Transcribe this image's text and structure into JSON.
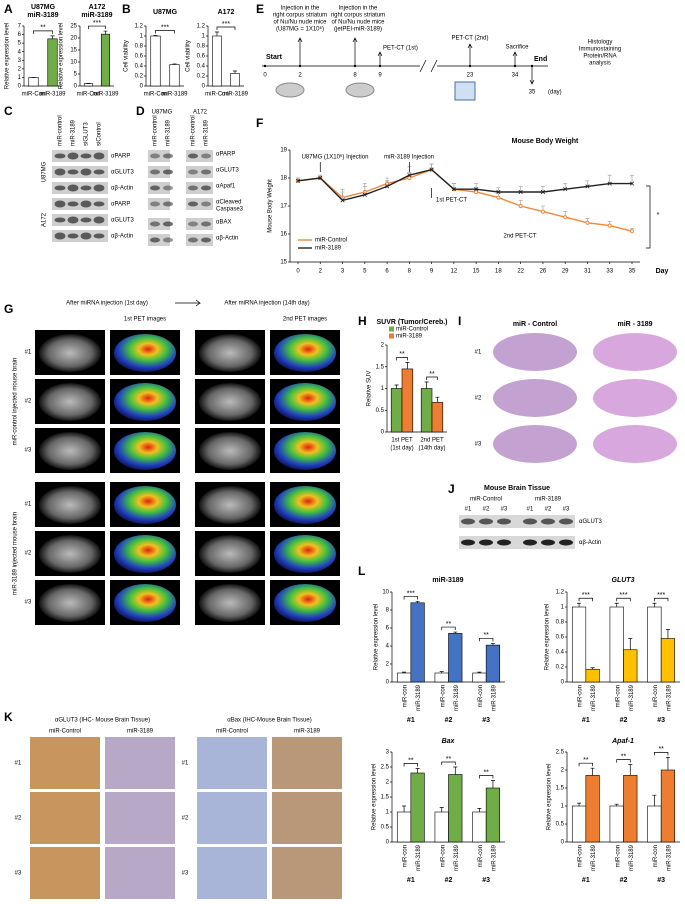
{
  "chart_data": [
    {
      "type": "bar",
      "title": [
        "U87MG",
        "miR-3189"
      ],
      "ylabel": "Relative expression level",
      "categories": [
        "miR-Con",
        "miR-3189"
      ],
      "values": [
        1,
        5.5
      ],
      "errors": [
        0,
        0.35
      ],
      "colors": [
        "#ffffff",
        "#70ad47"
      ],
      "ylim": [
        0,
        7
      ],
      "yticks": [
        0,
        1,
        2,
        3,
        4,
        5,
        6,
        7
      ],
      "annotations": [
        "**"
      ]
    },
    {
      "type": "bar",
      "title": [
        "A172",
        "miR-3189"
      ],
      "ylabel": "Relative expression level",
      "categories": [
        "miR-Con",
        "miR-3189"
      ],
      "values": [
        1,
        21.6
      ],
      "errors": [
        0.1,
        1.3
      ],
      "colors": [
        "#ffffff",
        "#70ad47"
      ],
      "ylim": [
        0,
        25
      ],
      "yticks": [
        0,
        5,
        10,
        15,
        20,
        25
      ],
      "annotations": [
        "***"
      ]
    },
    {
      "type": "bar",
      "title": [
        "U87MG"
      ],
      "ylabel": "Cell viability",
      "categories": [
        "miR-Con",
        "miR-3189"
      ],
      "values": [
        1,
        0.43
      ],
      "errors": [
        0.01,
        0.01
      ],
      "colors": [
        "#ffffff",
        "#ffffff"
      ],
      "ylim": [
        0,
        1.2
      ],
      "yticks": [
        0,
        0.2,
        0.4,
        0.6,
        0.8,
        1,
        1.2
      ],
      "annotations": [
        "***"
      ]
    },
    {
      "type": "bar",
      "title": [
        "A172"
      ],
      "ylabel": "Cell viability",
      "categories": [
        "miR-Con",
        "miR-3189"
      ],
      "values": [
        1,
        0.25
      ],
      "errors": [
        0.08,
        0.05
      ],
      "colors": [
        "#ffffff",
        "#ffffff"
      ],
      "ylim": [
        0,
        1.2
      ],
      "yticks": [
        0,
        0.2,
        0.4,
        0.6,
        0.8,
        1,
        1.2
      ],
      "annotations": [
        "***"
      ]
    },
    {
      "type": "line",
      "title": "Mouse Body Weight",
      "ylabel": "Mouse Body Weight",
      "xlabel": "Day",
      "categories": [
        "0",
        "2",
        "3",
        "5",
        "6",
        "8",
        "9",
        "12",
        "15",
        "18",
        "22",
        "26",
        "29",
        "31",
        "33",
        "35"
      ],
      "series": [
        {
          "name": "miR-Control",
          "color": "#f0883c",
          "values": [
            17.9,
            18.0,
            17.3,
            17.5,
            17.8,
            18.0,
            18.3,
            17.6,
            17.5,
            17.3,
            17.0,
            16.8,
            16.6,
            16.4,
            16.3,
            16.1
          ],
          "errors": [
            0.1,
            0.1,
            0.3,
            0.3,
            0.2,
            0.2,
            0.2,
            0.2,
            0.15,
            0.2,
            0.2,
            0.2,
            0.2,
            0.15,
            0.15,
            0.1
          ]
        },
        {
          "name": "miR-3189",
          "color": "#222222",
          "values": [
            17.9,
            18.0,
            17.2,
            17.4,
            17.7,
            18.1,
            18.3,
            17.6,
            17.6,
            17.5,
            17.5,
            17.5,
            17.6,
            17.7,
            17.8,
            17.8
          ],
          "errors": [
            0.1,
            0.1,
            0.3,
            0.3,
            0.2,
            0.3,
            0.2,
            0.2,
            0.2,
            0.15,
            0.2,
            0.2,
            0.2,
            0.2,
            0.3,
            0.3
          ]
        }
      ],
      "ylim": [
        15,
        19
      ],
      "yticks": [
        15,
        16,
        17,
        18,
        19
      ],
      "legend": "lower left",
      "annotations": [
        "U87MG (1X10⁶) Injection",
        "miR-3189 Injection",
        "1st PET-CT",
        "2nd PET-CT",
        "*"
      ]
    },
    {
      "type": "bar",
      "title": "SUVR (Tumor/Cereb.)",
      "ylabel": "Relative SUV",
      "categories": [
        "1st PET",
        "2nd PET"
      ],
      "category_notes": [
        "(1st day)",
        "(14th day)"
      ],
      "series": [
        {
          "name": "miR-Control",
          "color": "#70ad47",
          "values": [
            1.0,
            1.0
          ],
          "errors": [
            0.08,
            0.15
          ]
        },
        {
          "name": "miR-3189",
          "color": "#ed7d31",
          "values": [
            1.45,
            0.68
          ],
          "errors": [
            0.15,
            0.12
          ]
        }
      ],
      "ylim": [
        0,
        2
      ],
      "yticks": [
        0,
        0.5,
        1,
        1.5,
        2
      ],
      "legend": "upper left",
      "annotations": [
        "**",
        "**"
      ]
    },
    {
      "type": "bar",
      "title": "miR-3189",
      "ylabel": "Relative expression level",
      "categories": [
        "#1",
        "#2",
        "#3"
      ],
      "series": [
        {
          "name": "miR-con",
          "color": "#ffffff",
          "values": [
            1,
            1,
            1
          ],
          "errors": [
            0.1,
            0.15,
            0.1
          ]
        },
        {
          "name": "miR-3189",
          "color": "#4472c4",
          "values": [
            8.8,
            5.4,
            4.1
          ],
          "errors": [
            0.15,
            0.15,
            0.2
          ]
        }
      ],
      "ylim": [
        0,
        10
      ],
      "yticks": [
        0,
        2,
        4,
        6,
        8,
        10
      ],
      "annotations": [
        "***",
        "**",
        "**"
      ]
    },
    {
      "type": "bar",
      "title": "GLUT3",
      "ylabel": "Relative expression level",
      "categories": [
        "#1",
        "#2",
        "#3"
      ],
      "series": [
        {
          "name": "miR-con",
          "color": "#ffffff",
          "values": [
            1,
            1,
            1
          ],
          "errors": [
            0.05,
            0.05,
            0.05
          ]
        },
        {
          "name": "miR-3189",
          "color": "#ffc000",
          "values": [
            0.17,
            0.43,
            0.58
          ],
          "errors": [
            0.02,
            0.15,
            0.12
          ]
        }
      ],
      "ylim": [
        0,
        1.2
      ],
      "yticks": [
        0,
        0.2,
        0.4,
        0.6,
        0.8,
        1,
        1.2
      ],
      "annotations": [
        "***",
        "***",
        "***"
      ]
    },
    {
      "type": "bar",
      "title": "Bax",
      "ylabel": "Relative expression level",
      "categories": [
        "#1",
        "#2",
        "#3"
      ],
      "series": [
        {
          "name": "miR-con",
          "color": "#ffffff",
          "values": [
            1,
            1,
            1
          ],
          "errors": [
            0.2,
            0.15,
            0.12
          ]
        },
        {
          "name": "miR-3189",
          "color": "#70ad47",
          "values": [
            2.3,
            2.25,
            1.8
          ],
          "errors": [
            0.15,
            0.25,
            0.25
          ]
        }
      ],
      "ylim": [
        0,
        3
      ],
      "yticks": [
        0,
        0.5,
        1,
        1.5,
        2,
        2.5,
        3
      ],
      "annotations": [
        "**",
        "**",
        "**"
      ]
    },
    {
      "type": "bar",
      "title": "Apaf-1",
      "ylabel": "Relative expression level",
      "categories": [
        "#1",
        "#2",
        "#3"
      ],
      "series": [
        {
          "name": "miR-con",
          "color": "#ffffff",
          "values": [
            1,
            1,
            1
          ],
          "errors": [
            0.08,
            0.05,
            0.3
          ]
        },
        {
          "name": "miR-3189",
          "color": "#ed7d31",
          "values": [
            1.85,
            1.85,
            2.0
          ],
          "errors": [
            0.2,
            0.3,
            0.35
          ]
        }
      ],
      "ylim": [
        0,
        2.5
      ],
      "yticks": [
        0,
        0.5,
        1,
        1.5,
        2,
        2.5
      ],
      "annotations": [
        "**",
        "**",
        "**"
      ]
    }
  ],
  "figure": {
    "panel_letters": [
      "A",
      "B",
      "C",
      "D",
      "E",
      "F",
      "G",
      "H",
      "I",
      "J",
      "K",
      "L"
    ],
    "C": {
      "columns": [
        "miR-control",
        "miR-3189",
        "siGLUT3",
        "siControl"
      ],
      "cell_lines": [
        "U87MG",
        "A172"
      ],
      "rows": [
        "αPARP",
        "αGLUT3",
        "αβ-Actin",
        "αPARP",
        "αGLUT3",
        "αβ-Actin"
      ]
    },
    "D": {
      "cell_lines": [
        "U87MG",
        "A172"
      ],
      "columns": [
        "miR-control",
        "miR-3189",
        "miR-control",
        "miR-3189"
      ],
      "rows": [
        [
          "αPARP"
        ],
        [
          "αGLUT3"
        ],
        [
          "αApaf1"
        ],
        [
          "αCleaved",
          "Caspase3"
        ],
        [
          "αBAX"
        ],
        [
          "αβ-Actin"
        ]
      ]
    },
    "E": {
      "start": "Start",
      "end": "End",
      "injection_1": [
        "Injection in the",
        "right corpus striatum",
        "of Nu/Nu nude mice",
        "(U87MG = 1X10⁶)"
      ],
      "injection_2": [
        "Injection in the",
        "right corpus striatum",
        "of Nu/Nu nude mice",
        "(jetPEI-miR-3189)"
      ],
      "pet_1": "PET-CT (1st)",
      "pet_2": "PET-CT (2nd)",
      "sacrifice": "Sacrifice",
      "analysis": [
        "Histology",
        "Immunostaining",
        "Protein/RNA",
        "analysis"
      ],
      "days": [
        "0",
        "2",
        "8",
        "9",
        "23",
        "34",
        "35"
      ],
      "day_unit": "(day)"
    },
    "G": {
      "headers": [
        "After miRNA injection (1st day)",
        "After miRNA injection (14th day)"
      ],
      "subheaders": [
        "1st PET images",
        "2nd PET images"
      ],
      "groups": [
        "miR-control injected mouse brain",
        "miR-3189 injected mouse brain"
      ],
      "rows": [
        "#1",
        "#2",
        "#3"
      ]
    },
    "I": {
      "columns": [
        "miR - Control",
        "miR - 3189"
      ],
      "rows": [
        "#1",
        "#2",
        "#3"
      ]
    },
    "J": {
      "title": "Mouse Brain Tissue",
      "groups": [
        "miR-Control",
        "miR-3189"
      ],
      "lanes": [
        "#1",
        "#2",
        "#3",
        "#1",
        "#2",
        "#3"
      ],
      "rows": [
        "αGLUT3",
        "αβ-Actin"
      ]
    },
    "K": {
      "panels": [
        {
          "title": "αGLUT3 (IHC- Mouse Brain Tissue)",
          "columns": [
            "miR-Control",
            "miR-3189"
          ]
        },
        {
          "title": "αBax (IHC-Mouse Brain Tissue)",
          "columns": [
            "miR-Control",
            "miR-3189"
          ]
        }
      ],
      "rows": [
        "#1",
        "#2",
        "#3"
      ]
    }
  }
}
